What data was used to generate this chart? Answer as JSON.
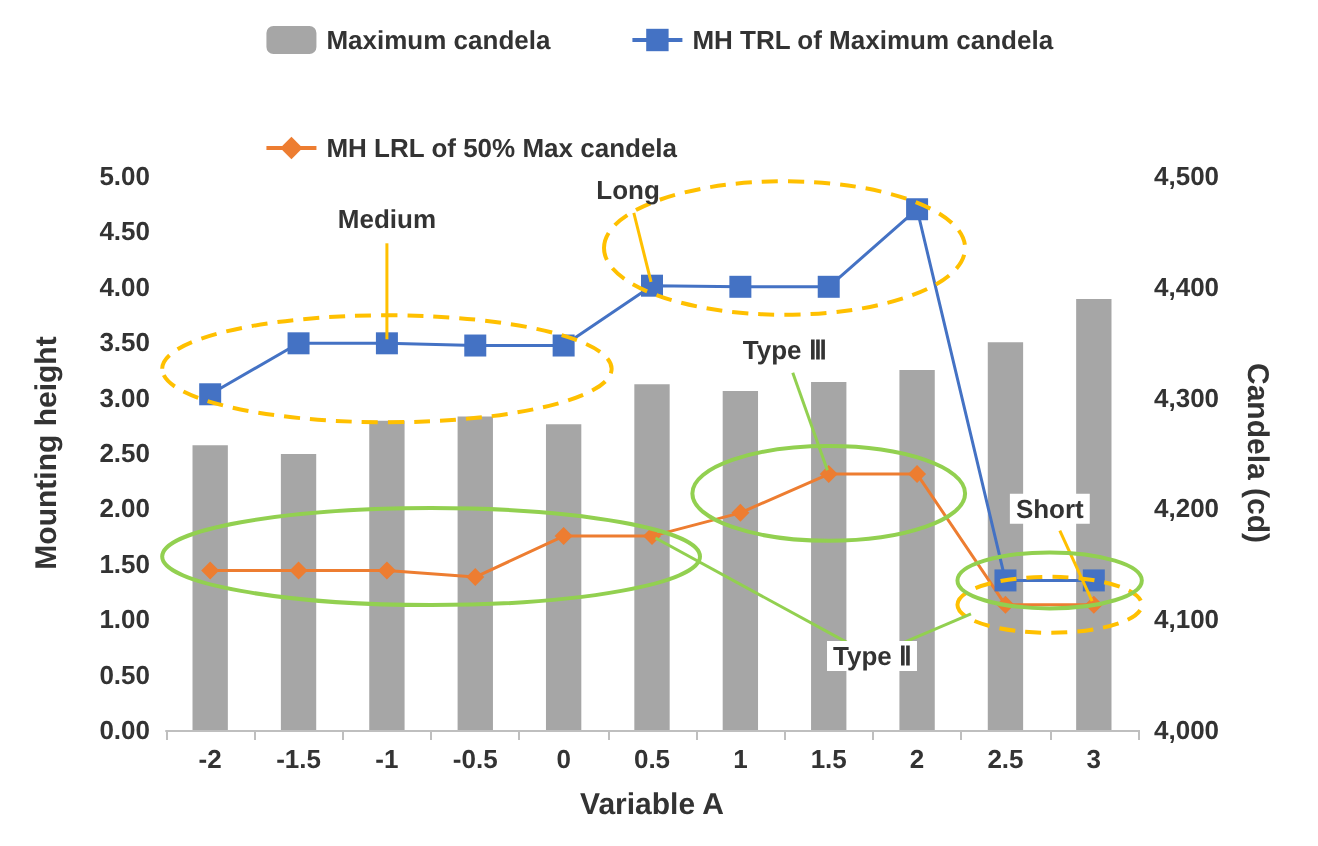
{
  "chart_data": {
    "type": "bar",
    "xlabel": "Variable A",
    "ylabel": "Mounting height",
    "y2label": "Candela (cd)",
    "categories": [
      "-2",
      "-1.5",
      "-1",
      "-0.5",
      "0",
      "0.5",
      "1",
      "1.5",
      "2",
      "2.5",
      "3"
    ],
    "series": [
      {
        "name": "Maximum candela",
        "axis": "y2",
        "color": "#a6a6a6",
        "values": [
          4257,
          4249,
          4279,
          4283,
          4276,
          4312,
          4306,
          4314,
          4325,
          4350,
          4389
        ]
      },
      {
        "name": "MH TRL of Maximum candela",
        "type": "line",
        "color": "#4472c4",
        "marker": "square",
        "values": [
          3.03,
          3.49,
          3.49,
          3.47,
          3.47,
          4.01,
          4.0,
          4.0,
          4.7,
          1.35,
          1.35
        ]
      },
      {
        "name": "MH LRL of 50% Max candela",
        "type": "line",
        "color": "#ed7d31",
        "marker": "diamond",
        "values": [
          1.44,
          1.44,
          1.44,
          1.38,
          1.75,
          1.75,
          1.96,
          2.31,
          2.31,
          1.13,
          1.13
        ]
      }
    ],
    "ylim": [
      0,
      5
    ],
    "yticks": [
      {
        "value": 0,
        "label": "0.00"
      },
      {
        "value": 0.5,
        "label": "0.50"
      },
      {
        "value": 1,
        "label": "1.00"
      },
      {
        "value": 1.5,
        "label": "1.50"
      },
      {
        "value": 2,
        "label": "2.00"
      },
      {
        "value": 2.5,
        "label": "2.50"
      },
      {
        "value": 3,
        "label": "3.00"
      },
      {
        "value": 3.5,
        "label": "3.50"
      },
      {
        "value": 4,
        "label": "4.00"
      },
      {
        "value": 4.5,
        "label": "4.50"
      },
      {
        "value": 5,
        "label": "5.00"
      }
    ],
    "y2lim": [
      4000,
      4500
    ],
    "y2ticks": [
      {
        "value": 4000,
        "label": "4,000"
      },
      {
        "value": 4100,
        "label": "4,100"
      },
      {
        "value": 4200,
        "label": "4,200"
      },
      {
        "value": 4300,
        "label": "4,300"
      },
      {
        "value": 4400,
        "label": "4,400"
      },
      {
        "value": 4500,
        "label": "4,500"
      }
    ],
    "annotations": [
      {
        "text": "Medium",
        "x": "-1",
        "y": 3.49
      },
      {
        "text": "Long",
        "x": "0.5",
        "y": 4.01
      },
      {
        "text": "Type Ⅲ",
        "x": "1.5",
        "y": 2.31
      },
      {
        "text": "Short",
        "x": "3",
        "y": 1.13
      },
      {
        "text": "Type Ⅱ",
        "x": "0.5",
        "y": 1.75
      }
    ],
    "grid": false,
    "legend": "top",
    "line_style": "solid"
  }
}
